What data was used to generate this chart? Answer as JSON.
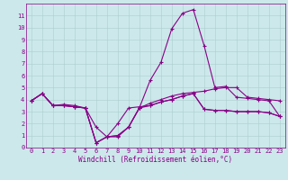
{
  "xlabel": "Windchill (Refroidissement éolien,°C)",
  "x_hours": [
    0,
    1,
    2,
    3,
    4,
    5,
    6,
    7,
    8,
    9,
    10,
    11,
    12,
    13,
    14,
    15,
    16,
    17,
    18,
    19,
    20,
    21,
    22,
    23
  ],
  "line1": [
    3.9,
    4.5,
    3.5,
    3.6,
    3.5,
    3.3,
    0.4,
    0.9,
    0.9,
    1.7,
    3.3,
    5.6,
    7.1,
    9.9,
    11.2,
    11.5,
    8.5,
    5.0,
    5.1,
    4.2,
    4.1,
    4.0,
    3.9,
    2.6
  ],
  "line2": [
    3.9,
    4.5,
    3.5,
    3.5,
    3.4,
    3.3,
    0.4,
    0.9,
    1.0,
    1.7,
    3.3,
    3.7,
    4.0,
    4.3,
    4.5,
    4.6,
    4.7,
    4.9,
    5.0,
    5.0,
    4.2,
    4.1,
    4.0,
    3.9
  ],
  "line3": [
    3.9,
    4.5,
    3.5,
    3.5,
    3.4,
    3.3,
    1.7,
    0.9,
    2.0,
    3.3,
    3.4,
    3.5,
    3.8,
    4.0,
    4.3,
    4.5,
    3.2,
    3.1,
    3.1,
    3.0,
    3.0,
    3.0,
    2.9,
    2.6
  ],
  "line4": [
    3.9,
    4.5,
    3.5,
    3.5,
    3.4,
    3.3,
    0.4,
    0.9,
    1.0,
    1.7,
    3.3,
    3.5,
    3.8,
    4.0,
    4.3,
    4.5,
    3.2,
    3.1,
    3.1,
    3.0,
    3.0,
    3.0,
    2.9,
    2.6
  ],
  "color": "#880088",
  "bg_color": "#cce8ea",
  "grid_color": "#aacece",
  "ylim_min": 0,
  "ylim_max": 12,
  "yticks": [
    0,
    1,
    2,
    3,
    4,
    5,
    6,
    7,
    8,
    9,
    10,
    11
  ],
  "xticks": [
    0,
    1,
    2,
    3,
    4,
    5,
    6,
    7,
    8,
    9,
    10,
    11,
    12,
    13,
    14,
    15,
    16,
    17,
    18,
    19,
    20,
    21,
    22,
    23
  ],
  "lw": 0.8,
  "ms": 2.5,
  "tick_fontsize": 5.0,
  "xlabel_fontsize": 5.5
}
